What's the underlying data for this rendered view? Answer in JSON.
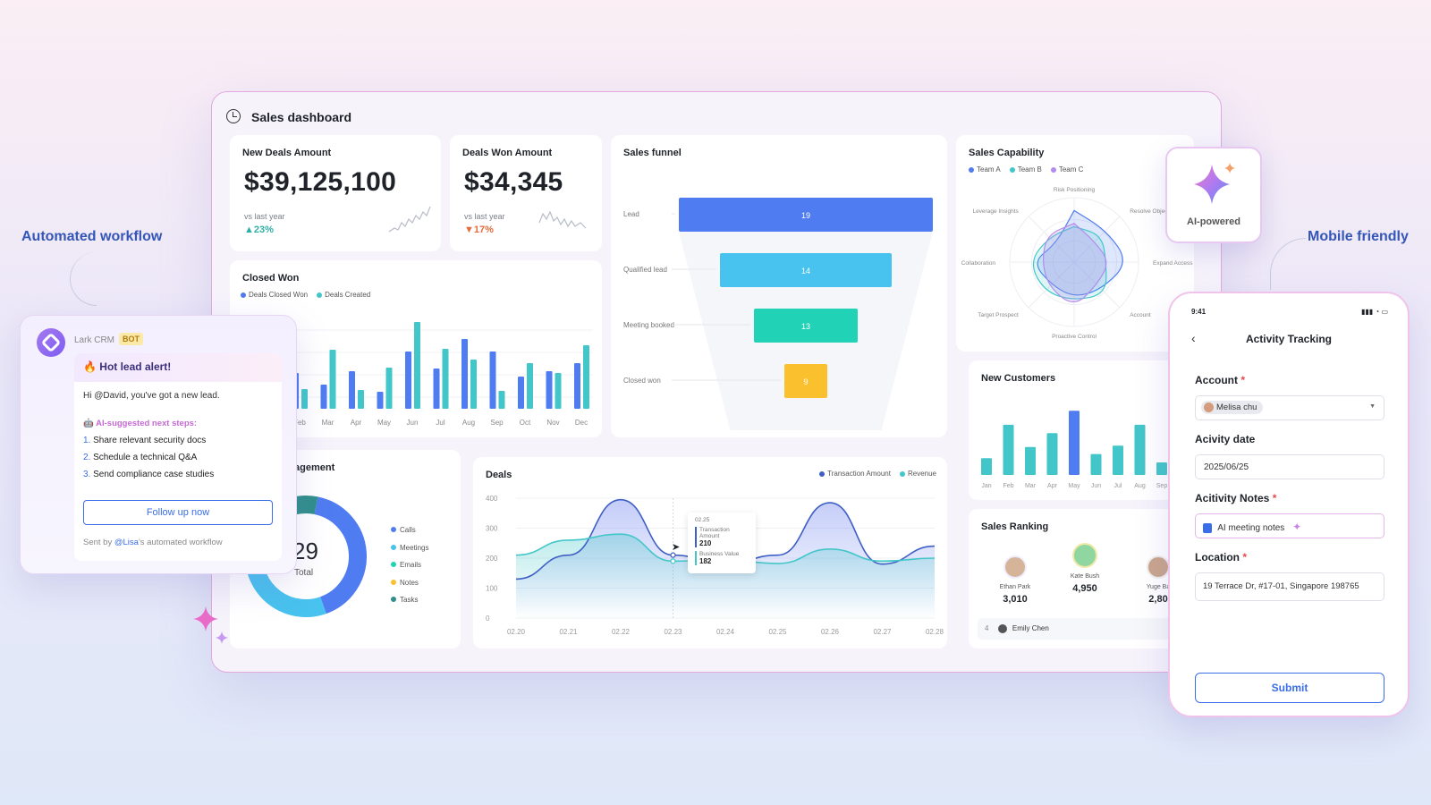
{
  "labels": {
    "automated_workflow": "Automated workflow",
    "mobile_friendly": "Mobile friendly"
  },
  "dashboard": {
    "title": "Sales dashboard",
    "new_deals": {
      "title": "New Deals Amount",
      "value": "$39,125,100",
      "vs": "vs last year",
      "delta": "▲23%"
    },
    "deals_won": {
      "title": "Deals Won Amount",
      "value": "$34,345",
      "vs": "vs last year",
      "delta": "▼17%"
    },
    "closed_won": {
      "title": "Closed Won",
      "legend": [
        "Deals Closed Won",
        "Deals Created"
      ]
    },
    "sales_funnel": {
      "title": "Sales funnel"
    },
    "sales_capability": {
      "title": "Sales Capability",
      "legend": [
        "Team A",
        "Team B",
        "Team C"
      ]
    },
    "new_customers": {
      "title": "New Customers"
    },
    "engagement": {
      "title": "agement",
      "total_value": "29",
      "total_label": "Total",
      "legend": [
        "Calls",
        "Meetings",
        "Emails",
        "Notes",
        "Tasks"
      ]
    },
    "deals": {
      "title": "Deals",
      "legend": [
        "Transaction Amount",
        "Revenue"
      ],
      "tooltip": {
        "date": "02.25",
        "transaction_label": "Transaction Amount",
        "transaction_value": "210",
        "business_label": "Business Value",
        "business_value": "182"
      }
    },
    "sales_ranking": {
      "title": "Sales Ranking",
      "people": [
        {
          "name": "Ethan Park",
          "value": "3,010"
        },
        {
          "name": "Kate Bush",
          "value": "4,950"
        },
        {
          "name": "Yuge Ba",
          "value": "2,80"
        }
      ],
      "row": {
        "rank": "4",
        "name": "Emily Chen"
      }
    }
  },
  "chart_data": [
    {
      "type": "bar",
      "title": "Closed Won",
      "categories": [
        "Feb",
        "Mar",
        "Apr",
        "May",
        "Jun",
        "Jul",
        "Aug",
        "Sep",
        "Oct",
        "Nov",
        "Dec"
      ],
      "series": [
        {
          "name": "Deals Closed Won",
          "values": [
            40,
            27,
            42,
            19,
            64,
            45,
            78,
            64,
            36,
            42,
            51
          ]
        },
        {
          "name": "Deals Created",
          "values": [
            22,
            66,
            21,
            46,
            97,
            67,
            55,
            20,
            51,
            40,
            71
          ]
        }
      ]
    },
    {
      "type": "bar",
      "title": "Sales funnel",
      "categories": [
        "Lead",
        "Qualified lead",
        "Meeting booked",
        "Closed won"
      ],
      "values": [
        19,
        14,
        13,
        9
      ]
    },
    {
      "type": "bar",
      "title": "New Customers",
      "categories": [
        "Jan",
        "Feb",
        "Mar",
        "Apr",
        "May",
        "Jun",
        "Jul",
        "Aug",
        "Sep"
      ],
      "values": [
        24,
        72,
        40,
        60,
        92,
        30,
        42,
        72,
        18
      ]
    },
    {
      "type": "pie",
      "title": "agement",
      "categories": [
        "Calls",
        "Meetings",
        "Emails",
        "Notes",
        "Tasks"
      ],
      "values": [
        12,
        9,
        4,
        2,
        2
      ]
    },
    {
      "type": "line",
      "title": "Deals",
      "x": [
        "02.20",
        "02.21",
        "02.22",
        "02.23",
        "02.24",
        "02.25",
        "02.26",
        "02.27",
        "02.28"
      ],
      "ylim": [
        0,
        400
      ],
      "series": [
        {
          "name": "Transaction Amount",
          "values": [
            130,
            210,
            395,
            210,
            180,
            210,
            385,
            180,
            240
          ]
        },
        {
          "name": "Revenue",
          "values": [
            210,
            260,
            280,
            190,
            195,
            182,
            230,
            190,
            200
          ]
        }
      ]
    },
    {
      "type": "radar",
      "title": "Sales Capability",
      "categories": [
        "Risk Positioning",
        "Resolve Objections",
        "Expand Access",
        "Account",
        "Proactive Control",
        "Target Prospect",
        "Collaboration",
        "Leverage Insights"
      ],
      "series": [
        {
          "name": "Team A",
          "values": [
            80,
            70,
            85,
            60,
            55,
            50,
            65,
            40
          ]
        },
        {
          "name": "Team B",
          "values": [
            55,
            60,
            50,
            70,
            60,
            65,
            70,
            55
          ]
        },
        {
          "name": "Team C",
          "values": [
            60,
            45,
            55,
            50,
            70,
            55,
            50,
            60
          ]
        }
      ]
    }
  ],
  "bot": {
    "name": "Lark CRM",
    "badge": "BOT",
    "alert_title": "🔥 Hot lead alert!",
    "greeting": "Hi @David, you've got a new lead.",
    "ai_heading": "AI-suggested next steps:",
    "steps": [
      {
        "num": "1.",
        "text": "Share relevant security docs"
      },
      {
        "num": "2.",
        "text": "Schedule a technical Q&A"
      },
      {
        "num": "3.",
        "text": "Send compliance case studies"
      }
    ],
    "button": "Follow up now",
    "sent_prefix": "Sent by ",
    "sent_mention": "@Lisa",
    "sent_suffix": "'s automated workflow"
  },
  "ai_badge": {
    "label": "AI-powered"
  },
  "phone": {
    "time": "9:41",
    "title": "Activity Tracking",
    "account_label": "Account",
    "account_value": "Melisa chu",
    "date_label": "Acivity date",
    "date_value": "2025/06/25",
    "notes_label": "Acitivity Notes",
    "notes_value": "AI meeting notes",
    "location_label": "Location",
    "location_value": "19 Terrace Dr, #17-01, Singapore 198765",
    "submit": "Submit"
  },
  "colors": {
    "blue": "#4f7cf0",
    "teal": "#43c6c9",
    "cyan": "#48c2ee",
    "green": "#22d2b6",
    "yellow": "#fbc02d",
    "purple": "#b28bf0"
  }
}
